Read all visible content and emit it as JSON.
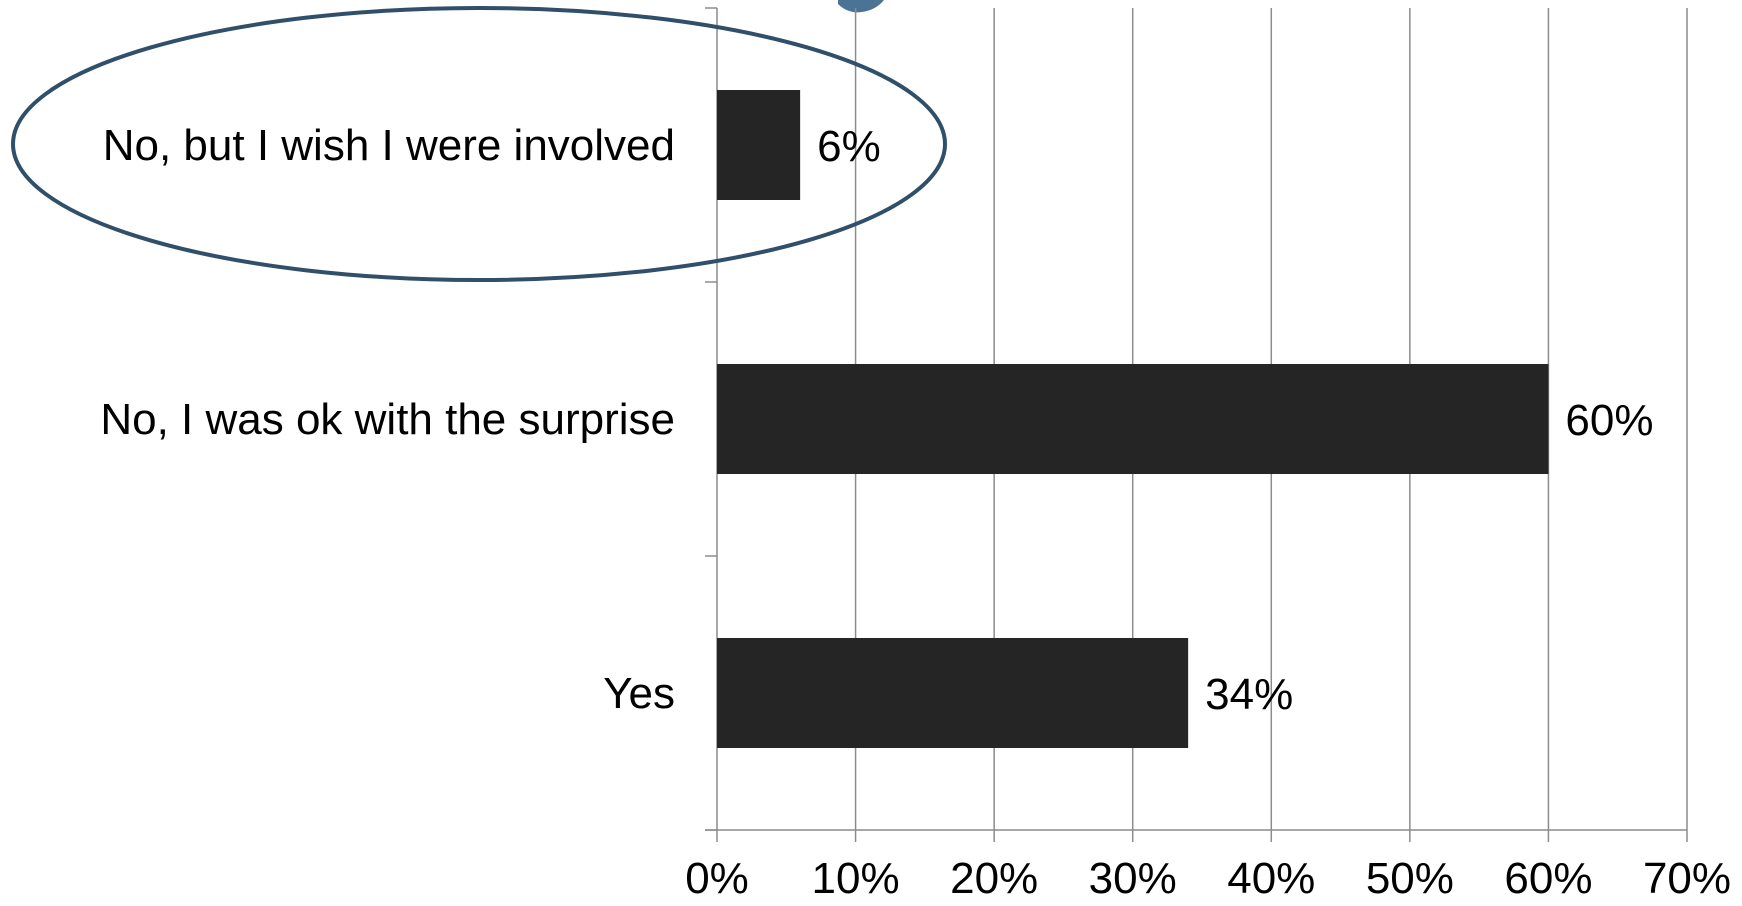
{
  "chart_data": {
    "type": "bar",
    "orientation": "horizontal",
    "categories": [
      "No, but I wish I were involved",
      "No, I was ok with the surprise",
      "Yes"
    ],
    "values": [
      6,
      60,
      34
    ],
    "data_labels": [
      "6%",
      "60%",
      "34%"
    ],
    "x_ticks": [
      "0%",
      "10%",
      "20%",
      "30%",
      "40%",
      "50%",
      "60%",
      "70%"
    ],
    "xlim": [
      0,
      70
    ],
    "grid": "vertical",
    "legend": "none",
    "highlighted_category": "No, but I wish I were involved",
    "colors": {
      "bar": "#262525",
      "grid": "#8c8c8c",
      "axis": "#8c8c8c",
      "highlight_ellipse": "#2f4f6a",
      "title_fragment": "#4a7396"
    }
  }
}
